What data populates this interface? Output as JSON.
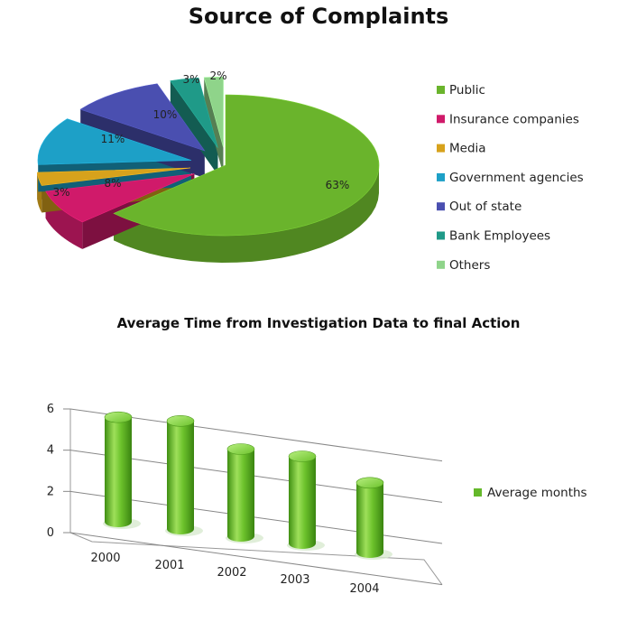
{
  "chart_data": [
    {
      "type": "pie",
      "title": "Source of Complaints",
      "categories": [
        "Public",
        "Insurance companies",
        "Media",
        "Government agencies",
        "Out of state",
        "Bank Employees",
        "Others"
      ],
      "values": [
        63,
        8,
        3,
        11,
        10,
        3,
        2
      ],
      "labels": [
        "63%",
        "8%",
        "3%",
        "11%",
        "10%",
        "3%",
        "2%"
      ],
      "colors": [
        "#6ab42c",
        "#d01a6a",
        "#d7a21c",
        "#1da0c7",
        "#4a4fb0",
        "#1f9a88",
        "#8fd48a"
      ],
      "legend_position": "right"
    },
    {
      "type": "bar",
      "title": "Average Time from Investigation Data to final Action",
      "categories": [
        "2000",
        "2001",
        "2002",
        "2003",
        "2004"
      ],
      "series": [
        {
          "name": "Average months",
          "values": [
            6,
            6.2,
            5,
            5,
            4
          ]
        }
      ],
      "ylim": [
        0,
        6
      ],
      "yticks": [
        "0",
        "2",
        "4",
        "6"
      ],
      "grid": true,
      "legend_position": "right",
      "color": "#64b82a"
    }
  ]
}
